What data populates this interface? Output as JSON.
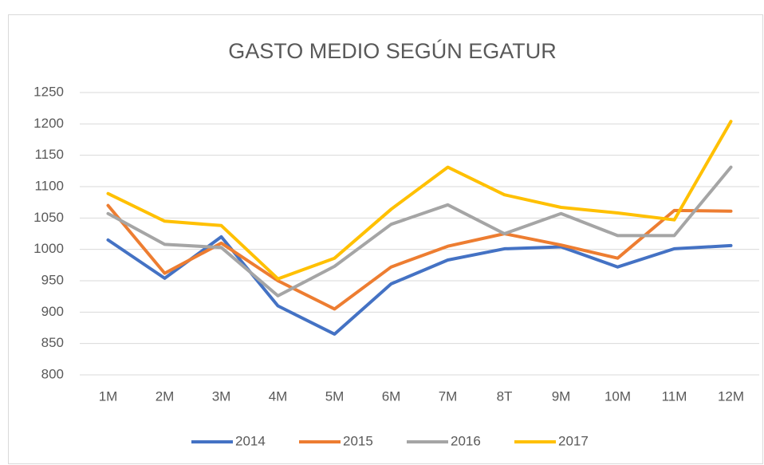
{
  "chart_data": {
    "type": "line",
    "title": "GASTO MEDIO SEGÚN EGATUR",
    "categories": [
      "1M",
      "2M",
      "3M",
      "4M",
      "5M",
      "6M",
      "7M",
      "8T",
      "9M",
      "10M",
      "11M",
      "12M"
    ],
    "series": [
      {
        "name": "2014",
        "color": "#4472c4",
        "values": [
          1015,
          954,
          1020,
          910,
          865,
          945,
          983,
          1001,
          1004,
          972,
          1001,
          1006
        ]
      },
      {
        "name": "2015",
        "color": "#ed7d31",
        "values": [
          1070,
          962,
          1010,
          950,
          905,
          972,
          1005,
          1025,
          1007,
          986,
          1062,
          1061
        ]
      },
      {
        "name": "2016",
        "color": "#a5a5a5",
        "values": [
          1057,
          1008,
          1003,
          926,
          973,
          1040,
          1071,
          1025,
          1057,
          1022,
          1022,
          1131
        ]
      },
      {
        "name": "2017",
        "color": "#ffc000",
        "values": [
          1089,
          1045,
          1038,
          953,
          986,
          1064,
          1131,
          1087,
          1067,
          1058,
          1047,
          1204
        ]
      }
    ],
    "ylim": [
      800,
      1250
    ],
    "yticks": [
      800,
      850,
      900,
      950,
      1000,
      1050,
      1100,
      1150,
      1200,
      1250
    ],
    "grid": true,
    "legend": "bottom"
  }
}
